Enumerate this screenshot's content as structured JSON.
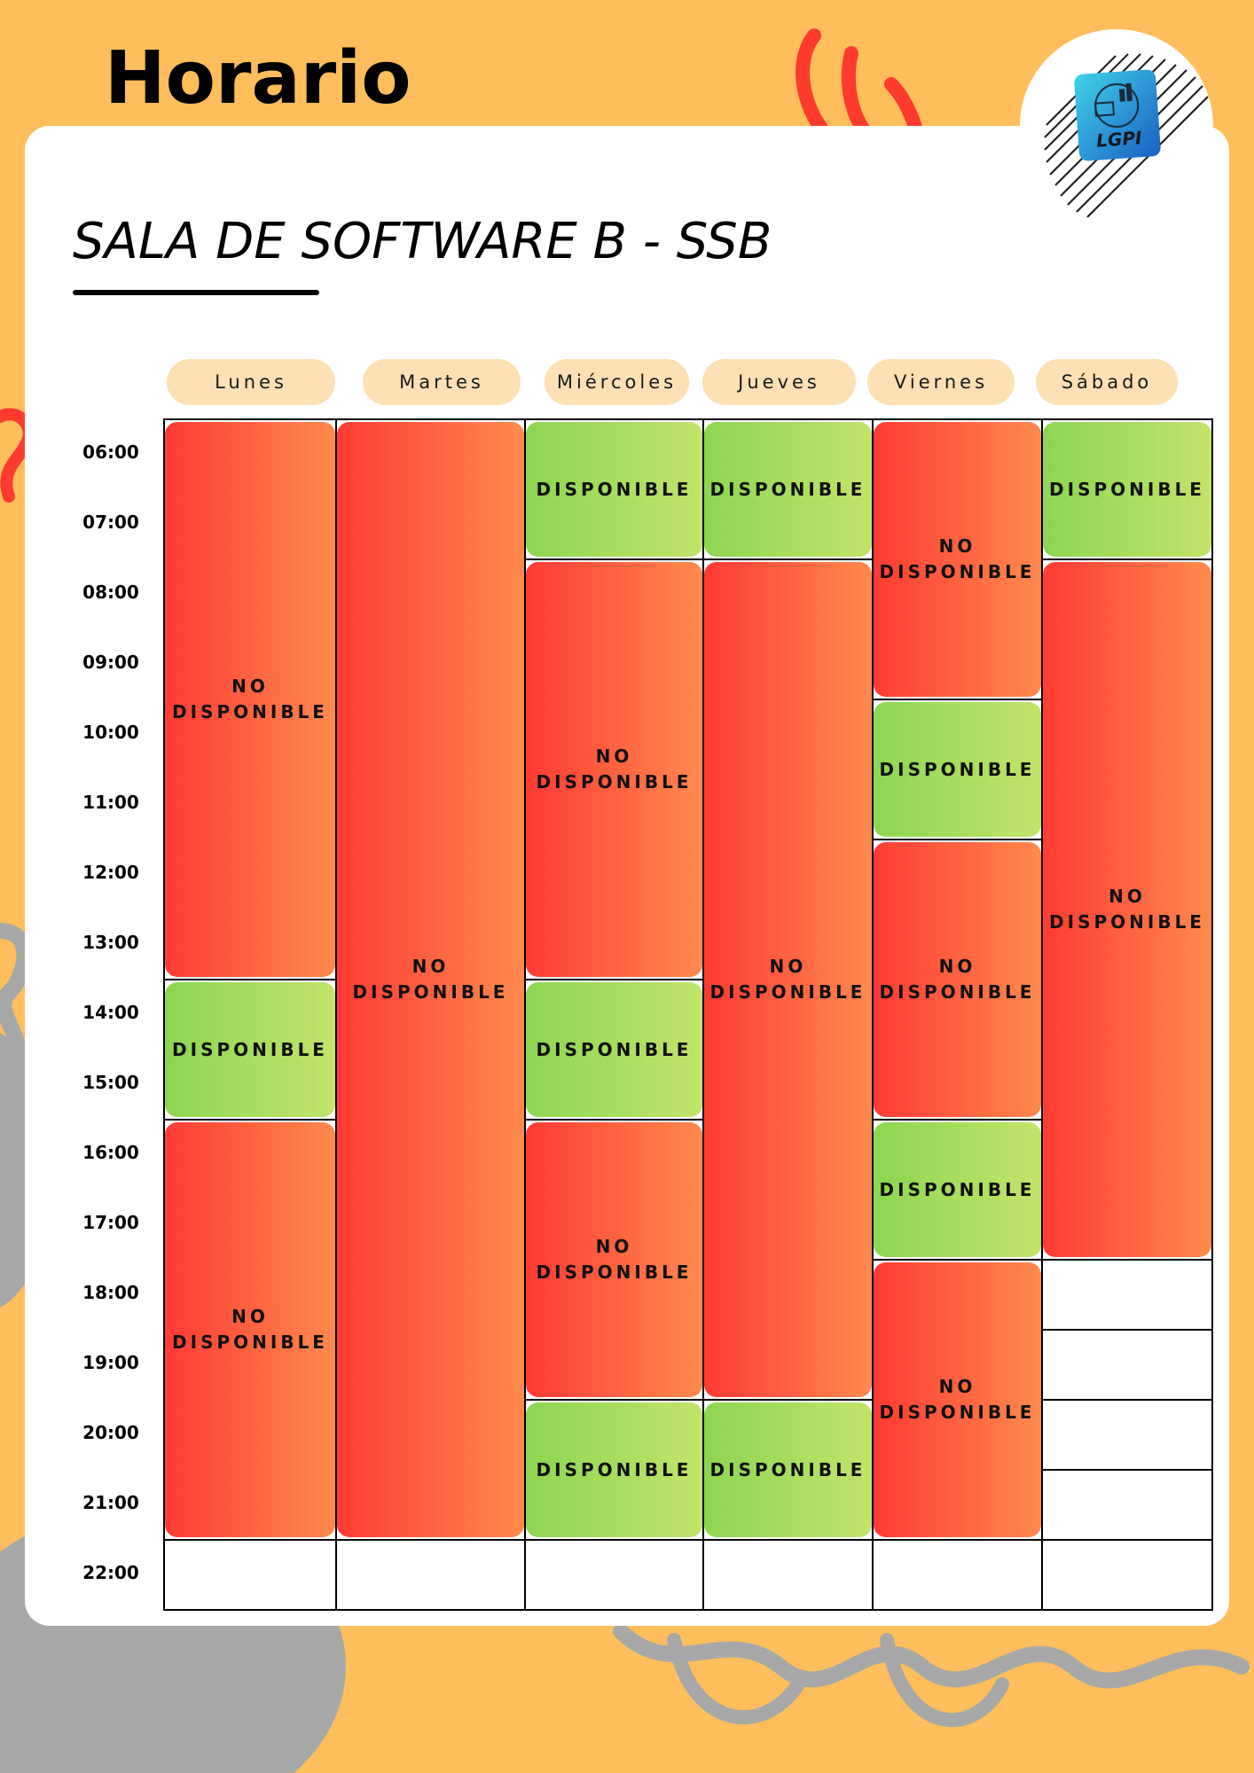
{
  "header": {
    "title": "Horario"
  },
  "room": {
    "name": "SALA DE SOFTWARE B - SSB"
  },
  "logo": {
    "text": "LGPI"
  },
  "days": [
    "Lunes",
    "Martes",
    "Miércoles",
    "Jueves",
    "Viernes",
    "Sábado"
  ],
  "times": [
    "06:00",
    "07:00",
    "08:00",
    "09:00",
    "10:00",
    "11:00",
    "12:00",
    "13:00",
    "14:00",
    "15:00",
    "16:00",
    "17:00",
    "18:00",
    "19:00",
    "20:00",
    "21:00",
    "22:00"
  ],
  "labels": {
    "available": "DISPONIBLE",
    "unavailable": "NO\nDISPONIBLE"
  },
  "colors": {
    "background": "#ffbe5b",
    "day_pill": "#fde0b3",
    "unavailable": "#ff3a33",
    "available": "#8cd651"
  },
  "schedule": [
    {
      "day": "Lunes",
      "status": "unavailable",
      "start": "06:00",
      "end": "14:00"
    },
    {
      "day": "Lunes",
      "status": "available",
      "start": "14:00",
      "end": "16:00"
    },
    {
      "day": "Lunes",
      "status": "unavailable",
      "start": "16:00",
      "end": "22:00"
    },
    {
      "day": "Martes",
      "status": "unavailable",
      "start": "06:00",
      "end": "22:00"
    },
    {
      "day": "Miércoles",
      "status": "available",
      "start": "06:00",
      "end": "08:00"
    },
    {
      "day": "Miércoles",
      "status": "unavailable",
      "start": "08:00",
      "end": "14:00"
    },
    {
      "day": "Miércoles",
      "status": "available",
      "start": "14:00",
      "end": "16:00"
    },
    {
      "day": "Miércoles",
      "status": "unavailable",
      "start": "16:00",
      "end": "20:00"
    },
    {
      "day": "Miércoles",
      "status": "available",
      "start": "20:00",
      "end": "22:00"
    },
    {
      "day": "Jueves",
      "status": "available",
      "start": "06:00",
      "end": "08:00"
    },
    {
      "day": "Jueves",
      "status": "unavailable",
      "start": "08:00",
      "end": "20:00"
    },
    {
      "day": "Jueves",
      "status": "available",
      "start": "20:00",
      "end": "22:00"
    },
    {
      "day": "Viernes",
      "status": "unavailable",
      "start": "06:00",
      "end": "10:00"
    },
    {
      "day": "Viernes",
      "status": "available",
      "start": "10:00",
      "end": "12:00"
    },
    {
      "day": "Viernes",
      "status": "unavailable",
      "start": "12:00",
      "end": "16:00"
    },
    {
      "day": "Viernes",
      "status": "available",
      "start": "16:00",
      "end": "18:00"
    },
    {
      "day": "Viernes",
      "status": "unavailable",
      "start": "18:00",
      "end": "22:00"
    },
    {
      "day": "Sábado",
      "status": "available",
      "start": "06:00",
      "end": "08:00"
    },
    {
      "day": "Sábado",
      "status": "unavailable",
      "start": "08:00",
      "end": "18:00"
    }
  ]
}
